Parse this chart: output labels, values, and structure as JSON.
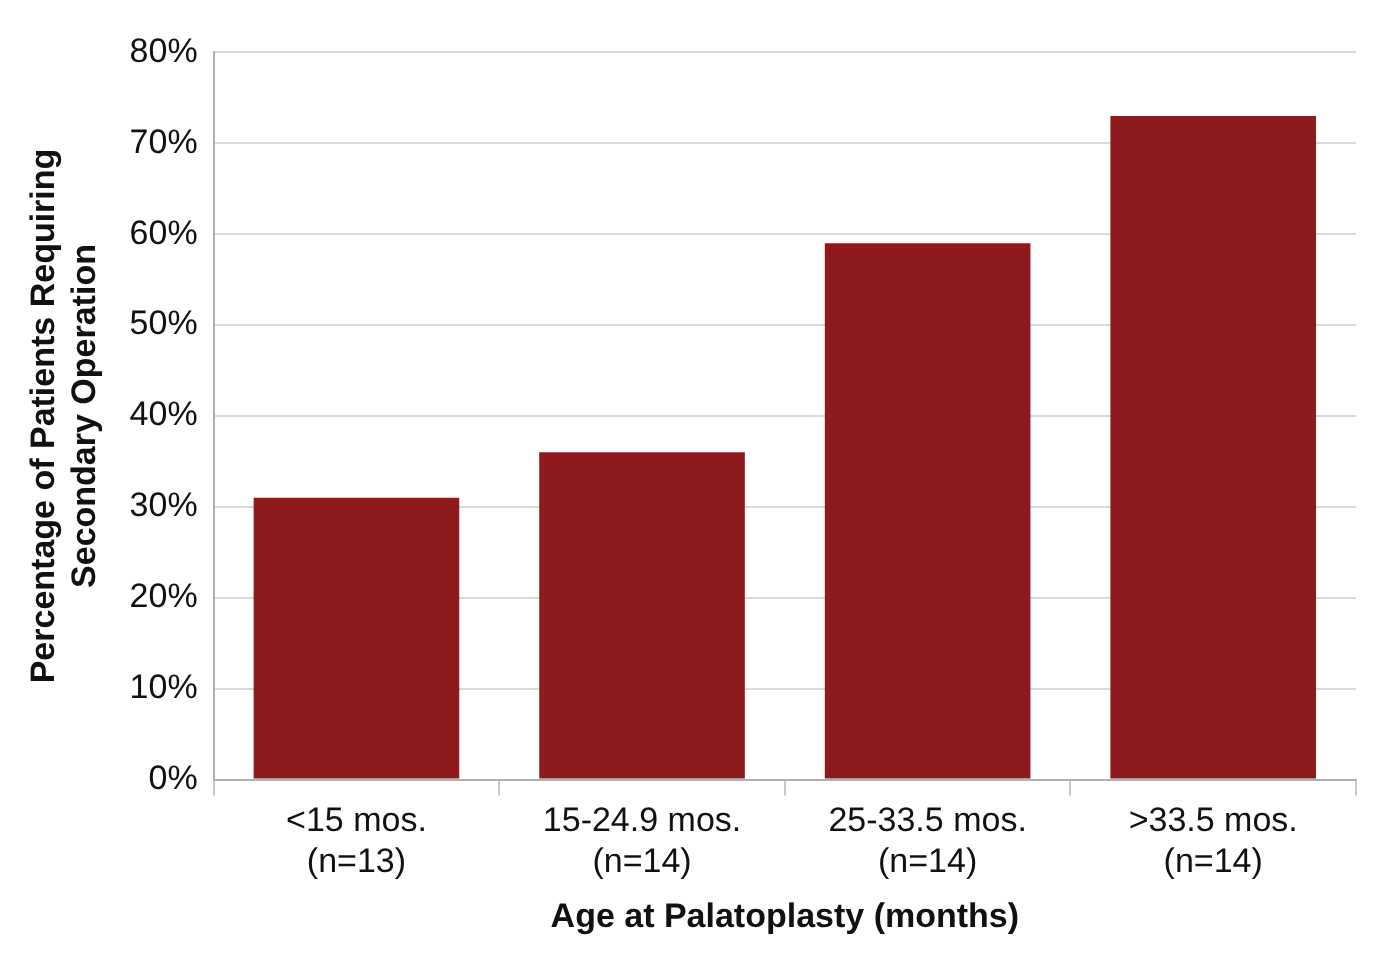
{
  "chart_data": {
    "type": "bar",
    "xlabel": "Age at Palatoplasty (months)",
    "ylabel": "Percentage of Patients Requiring\nSecondary Operation",
    "categories": [
      "<15 mos.\n(n=13)",
      "15-24.9 mos.\n(n=14)",
      "25-33.5 mos.\n(n=14)",
      ">33.5 mos.\n(n=14)"
    ],
    "values": [
      31,
      36,
      59,
      73
    ],
    "color": "#8f1a1d",
    "ylim": [
      0,
      80
    ],
    "yticks": [
      {
        "value": 0,
        "label": "0%"
      },
      {
        "value": 10,
        "label": "10%"
      },
      {
        "value": 20,
        "label": "20%"
      },
      {
        "value": 30,
        "label": "30%"
      },
      {
        "value": 40,
        "label": "40%"
      },
      {
        "value": 50,
        "label": "50%"
      },
      {
        "value": 60,
        "label": "60%"
      },
      {
        "value": 70,
        "label": "70%"
      },
      {
        "value": 80,
        "label": "80%"
      }
    ],
    "grid": "y",
    "legend": false
  }
}
